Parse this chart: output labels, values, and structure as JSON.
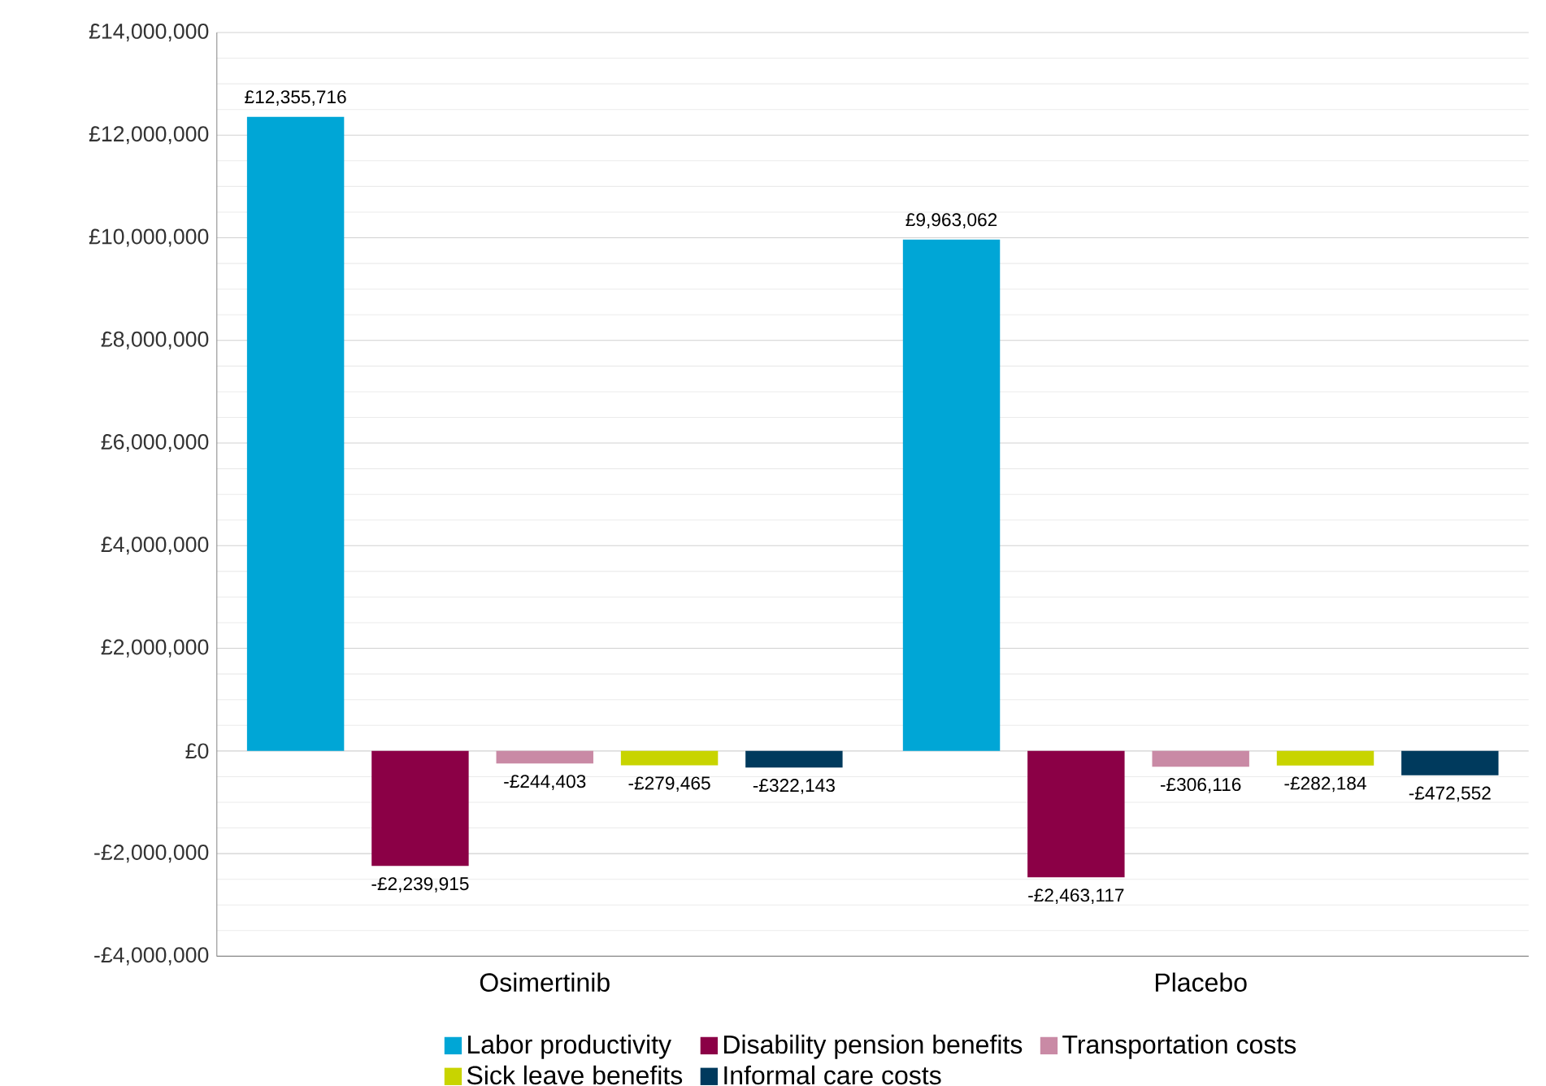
{
  "chart_data": {
    "type": "bar",
    "categories": [
      "Osimertinib",
      "Placebo"
    ],
    "series": [
      {
        "name": "Labor productivity",
        "color": "#00a6d6",
        "values": [
          12355716,
          9963062
        ],
        "value_labels": [
          "£12,355,716",
          "£9,963,062"
        ]
      },
      {
        "name": "Disability pension benefits",
        "color": "#8b0046",
        "values": [
          -2239915,
          -2463117
        ],
        "value_labels": [
          "-£2,239,915",
          "-£2,463,117"
        ]
      },
      {
        "name": "Transportation costs",
        "color": "#c98aa5",
        "values": [
          -244403,
          -306116
        ],
        "value_labels": [
          "-£244,403",
          "-£306,116"
        ]
      },
      {
        "name": "Sick leave benefits",
        "color": "#c8d400",
        "values": [
          -279465,
          -282184
        ],
        "value_labels": [
          "-£279,465",
          "-£282,184"
        ]
      },
      {
        "name": "Informal care costs",
        "color": "#003a5d",
        "values": [
          -322143,
          -472552
        ],
        "value_labels": [
          "-£322,143",
          "-£472,552"
        ]
      }
    ],
    "ylim": [
      -4000000,
      14000000
    ],
    "yticks": [
      {
        "value": -4000000,
        "label": "-£4,000,000"
      },
      {
        "value": -2000000,
        "label": "-£2,000,000"
      },
      {
        "value": 0,
        "label": "£0"
      },
      {
        "value": 2000000,
        "label": "£2,000,000"
      },
      {
        "value": 4000000,
        "label": "£4,000,000"
      },
      {
        "value": 6000000,
        "label": "£6,000,000"
      },
      {
        "value": 8000000,
        "label": "£8,000,000"
      },
      {
        "value": 10000000,
        "label": "£10,000,000"
      },
      {
        "value": 12000000,
        "label": "£12,000,000"
      },
      {
        "value": 14000000,
        "label": "£14,000,000"
      }
    ],
    "grid": "y",
    "legend": "bottom"
  }
}
